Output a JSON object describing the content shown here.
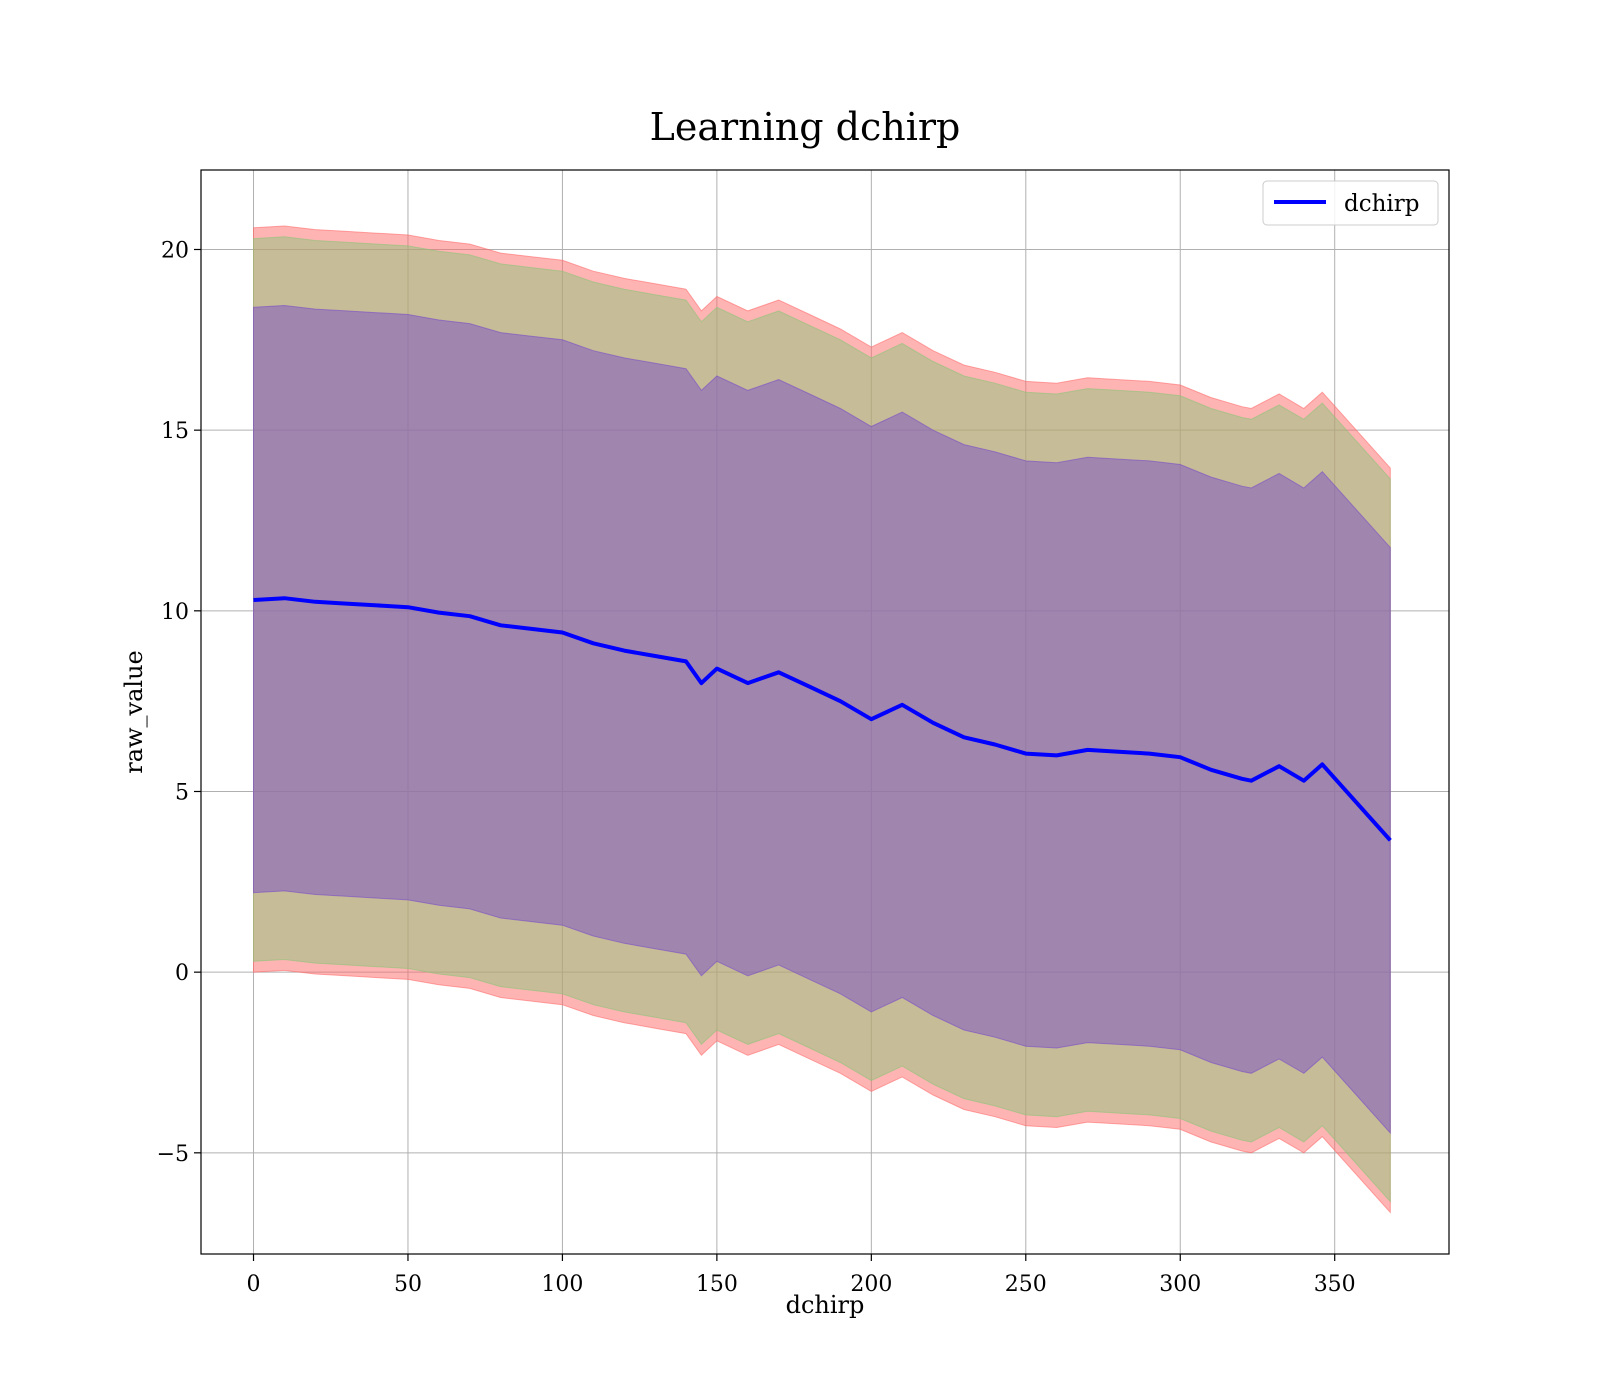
{
  "chart_data": {
    "type": "area",
    "title": "Learning dchirp",
    "xlabel": "dchirp",
    "ylabel": "raw_value",
    "xlim": [
      -17,
      387
    ],
    "ylim": [
      -7.8,
      22.2
    ],
    "xticks": [
      0,
      50,
      100,
      150,
      200,
      250,
      300,
      350
    ],
    "yticks": [
      -5,
      0,
      5,
      10,
      15,
      20
    ],
    "ytick_labels": [
      "−5",
      "0",
      "5",
      "10",
      "15",
      "20"
    ],
    "grid": true,
    "legend": {
      "position": "top-right",
      "entries": [
        "dchirp"
      ]
    },
    "x": [
      0,
      10,
      20,
      30,
      40,
      50,
      60,
      70,
      80,
      90,
      100,
      110,
      120,
      130,
      140,
      145,
      150,
      160,
      170,
      180,
      190,
      200,
      210,
      220,
      230,
      240,
      250,
      260,
      270,
      280,
      290,
      300,
      310,
      320,
      323,
      332,
      340,
      346,
      368
    ],
    "series": [
      {
        "name": "dchirp",
        "color": "#0000ff",
        "values": [
          10.3,
          10.35,
          10.25,
          10.2,
          10.15,
          10.1,
          9.95,
          9.85,
          9.6,
          9.5,
          9.4,
          9.1,
          8.9,
          8.75,
          8.6,
          8.0,
          8.4,
          8.0,
          8.3,
          7.9,
          7.5,
          7.0,
          7.4,
          6.9,
          6.5,
          6.3,
          6.05,
          6.0,
          6.15,
          6.1,
          6.05,
          5.95,
          5.6,
          5.35,
          5.3,
          5.7,
          5.3,
          5.75,
          3.65
        ]
      }
    ],
    "bands": [
      {
        "color": "#ff6a6a",
        "opacity": 0.5,
        "offset_upper": 10.3,
        "offset_lower": 10.3
      },
      {
        "color": "#8ec47a",
        "opacity": 0.5,
        "offset_upper": 10.0,
        "offset_lower": 10.0
      },
      {
        "color": "#7a4dc8",
        "opacity": 0.5,
        "offset_upper": 8.1,
        "offset_lower": 8.1
      }
    ]
  }
}
